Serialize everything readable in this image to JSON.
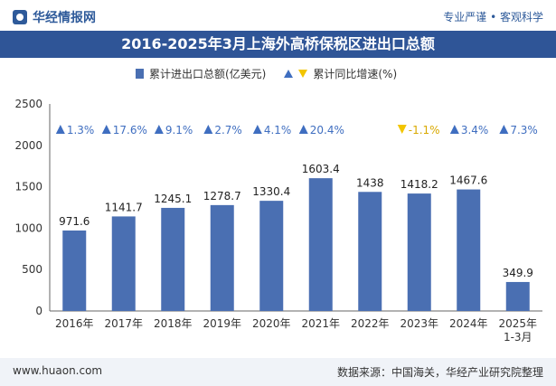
{
  "header": {
    "site_name": "华经情报网",
    "tagline": "专业严谨 • 客观科学"
  },
  "chart_title": "2016-2025年3月上海外高桥保税区进出口总额",
  "legend": {
    "bar_label": "累计进出口总额(亿美元)",
    "growth_label": "累计同比增速(%)"
  },
  "footer": {
    "website": "www.huaon.com",
    "source": "数据来源：中国海关，华经产业研究院整理"
  },
  "colors": {
    "bar": "#4a6fb2",
    "up": "#3f6ec0",
    "down": "#f2c500",
    "title_bg": "#2f5597"
  },
  "chart_data": {
    "type": "bar",
    "categories": [
      "2016年",
      "2017年",
      "2018年",
      "2019年",
      "2020年",
      "2021年",
      "2022年",
      "2023年",
      "2024年",
      "2025年\n1-3月"
    ],
    "series": [
      {
        "name": "累计进出口总额(亿美元)",
        "values": [
          971.6,
          1141.7,
          1245.1,
          1278.7,
          1330.4,
          1603.4,
          1438,
          1418.2,
          1467.6,
          349.9
        ]
      },
      {
        "name": "累计同比增速(%)",
        "values": [
          1.3,
          17.6,
          9.1,
          2.7,
          4.1,
          20.4,
          null,
          -1.1,
          3.4,
          7.3
        ]
      }
    ],
    "bar_labels": [
      "971.6",
      "1141.7",
      "1245.1",
      "1278.7",
      "1330.4",
      "1603.4",
      "1438",
      "1418.2",
      "1467.6",
      "349.9"
    ],
    "growth_labels": [
      "1.3%",
      "17.6%",
      "9.1%",
      "2.7%",
      "4.1%",
      "20.4%",
      "",
      "-1.1%",
      "3.4%",
      "7.3%"
    ],
    "ylim": [
      0,
      2500
    ],
    "yticks": [
      0,
      500,
      1000,
      1500,
      2000,
      2500
    ],
    "grid": false,
    "legend_position": "top"
  }
}
